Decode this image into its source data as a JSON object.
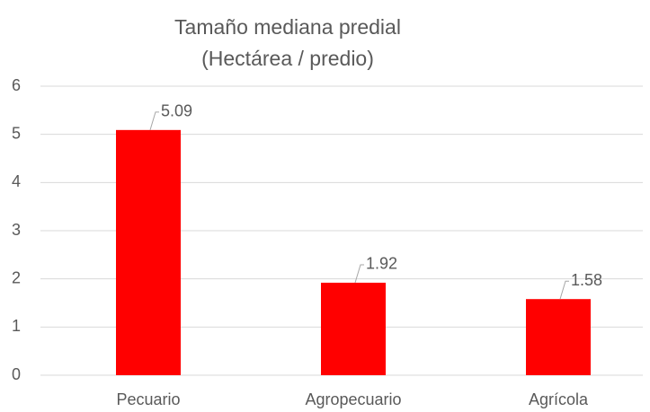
{
  "chart_data": {
    "type": "bar",
    "title": "Tamaño mediana predial",
    "subtitle": "(Hectárea / predio)",
    "categories": [
      "Pecuario",
      "Agropecuario",
      "Agrícola"
    ],
    "values": [
      5.09,
      1.92,
      1.58
    ],
    "color": "#ff0000",
    "ylim": [
      0,
      6
    ],
    "yticks": [
      0,
      1,
      2,
      3,
      4,
      5,
      6
    ],
    "grid": true
  }
}
